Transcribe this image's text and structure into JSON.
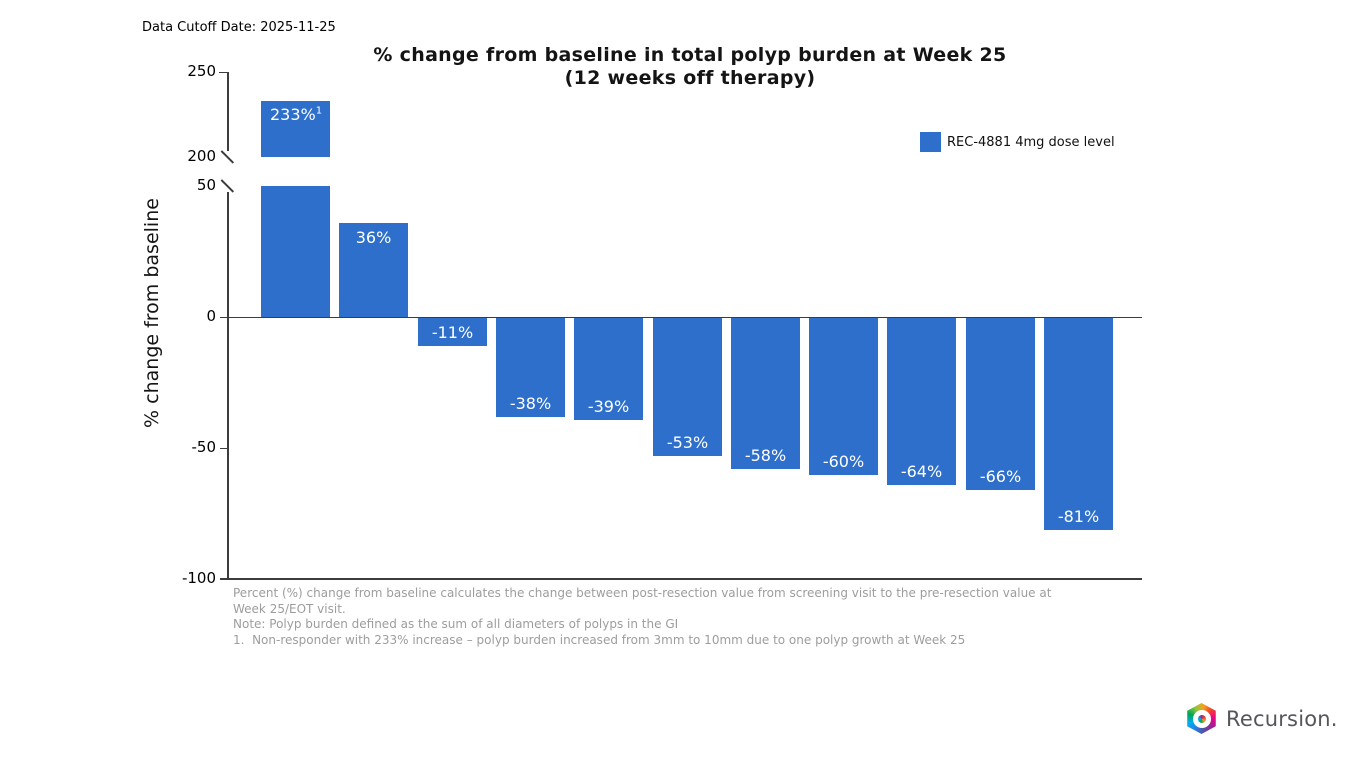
{
  "header": {
    "data_cutoff_label": "Data Cutoff Date: 2025-11-25"
  },
  "chart_data": {
    "type": "bar",
    "title": "% change from baseline in total polyp burden at Week 25",
    "subtitle": "(12 weeks off therapy)",
    "ylabel": "% change from baseline",
    "xlabel": "",
    "x_tick_labels": "none",
    "grid": false,
    "bar_color": "#2d6fca",
    "bar_label_color": "#ffffff",
    "values": [
      233,
      36,
      -11,
      -38,
      -39,
      -53,
      -58,
      -60,
      -64,
      -66,
      -81
    ],
    "bar_labels": [
      "233%",
      "36%",
      "-11%",
      "-38%",
      "-39%",
      "-53%",
      "-58%",
      "-60%",
      "-64%",
      "-66%",
      "-81%"
    ],
    "bar_label_superscripts": [
      "1",
      "",
      "",
      "",
      "",
      "",
      "",
      "",
      "",
      "",
      ""
    ],
    "legend": {
      "position": "upper right",
      "entries": [
        {
          "label": "REC-4881 4mg dose level",
          "color": "#2d6fca"
        }
      ]
    },
    "axis": {
      "broken": true,
      "upper_segment": {
        "range": [
          200,
          250
        ],
        "ticks": [
          250,
          200
        ]
      },
      "lower_segment": {
        "range": [
          -100,
          50
        ],
        "ticks": [
          50,
          0,
          -50,
          -100
        ]
      }
    }
  },
  "footnotes": {
    "lines": [
      "Percent (%) change from baseline calculates the change between post-resection value from screening visit to the pre-resection value at",
      "Week 25/EOT visit.",
      "Note: Polyp burden defined as the sum of all diameters of polyps in the GI",
      "1.  Non-responder with 233% increase – polyp burden increased from 3mm to 10mm due to one polyp growth at Week 25"
    ]
  },
  "logo": {
    "wordmark": "Recursion."
  }
}
